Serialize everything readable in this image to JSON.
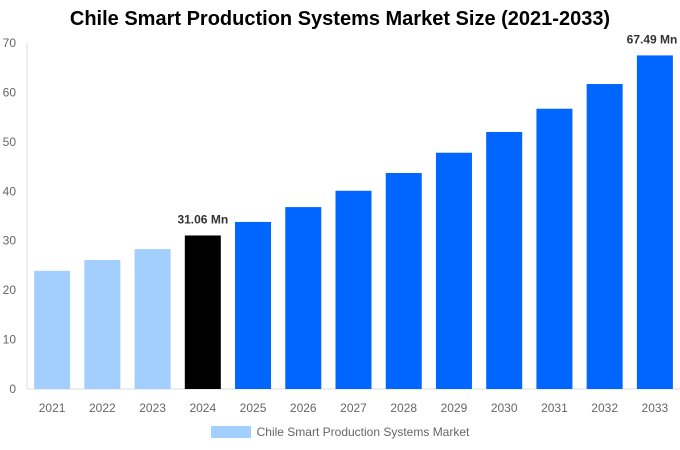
{
  "chart_data": {
    "type": "bar",
    "title": "Chile Smart Production Systems Market Size (2021-2033)",
    "categories": [
      "2021",
      "2022",
      "2023",
      "2024",
      "2025",
      "2026",
      "2027",
      "2028",
      "2029",
      "2030",
      "2031",
      "2032",
      "2033"
    ],
    "series": [
      {
        "name": "Chile Smart Production Systems Market",
        "values": [
          23.9,
          26.1,
          28.3,
          31.06,
          33.8,
          36.8,
          40.1,
          43.7,
          47.8,
          52.0,
          56.7,
          61.7,
          67.49
        ]
      }
    ],
    "data_labels": {
      "2024": "31.06 Mn",
      "2033": "67.49 Mn"
    },
    "ylim": [
      0,
      70
    ],
    "yticks": [
      0,
      10,
      20,
      30,
      40,
      50,
      60,
      70
    ],
    "grid": false,
    "legend": "bottom",
    "colors": {
      "historical": "#a3cfff",
      "base_year": "#000000",
      "forecast": "#0066ff"
    }
  }
}
